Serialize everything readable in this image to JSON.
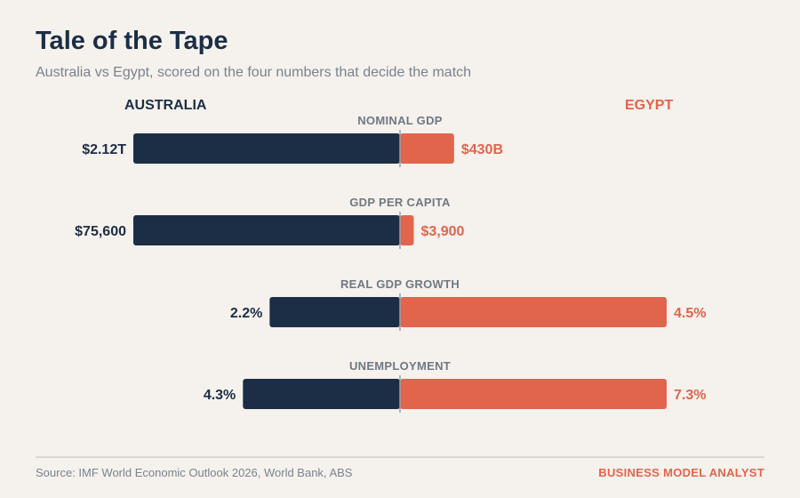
{
  "title": "Tale of the Tape",
  "subtitle": "Australia vs Egypt, scored on the four numbers that decide the match",
  "footer": {
    "source": "Source: IMF World Economic Outlook 2026, World Bank, ABS",
    "brand": "BUSINESS MODEL ANALYST"
  },
  "colors": {
    "australia": "#1c2e45",
    "egypt": "#e0654c",
    "metric_label": "#6f7884",
    "center_line": "#9aa0a6"
  },
  "chart_data": {
    "type": "bar",
    "orientation": "diverging-horizontal",
    "series": [
      {
        "name": "AUSTRALIA",
        "side": "left"
      },
      {
        "name": "EGYPT",
        "side": "right"
      }
    ],
    "categories": [
      "NOMINAL GDP",
      "GDP PER CAPITA",
      "REAL GDP GROWTH",
      "UNEMPLOYMENT"
    ],
    "rows": [
      {
        "metric": "NOMINAL GDP",
        "australia": 2120,
        "egypt": 430,
        "unit": "USD billions",
        "australia_label": "$2.12T",
        "egypt_label": "$430B"
      },
      {
        "metric": "GDP PER CAPITA",
        "australia": 75600,
        "egypt": 3900,
        "unit": "USD",
        "australia_label": "$75,600",
        "egypt_label": "$3,900"
      },
      {
        "metric": "REAL GDP GROWTH",
        "australia": 2.2,
        "egypt": 4.5,
        "unit": "%",
        "australia_label": "2.2%",
        "egypt_label": "4.5%"
      },
      {
        "metric": "UNEMPLOYMENT",
        "australia": 4.3,
        "egypt": 7.3,
        "unit": "%",
        "australia_label": "4.3%",
        "egypt_label": "7.3%"
      }
    ],
    "scaling": "each row scaled to its larger value",
    "grid": false
  }
}
